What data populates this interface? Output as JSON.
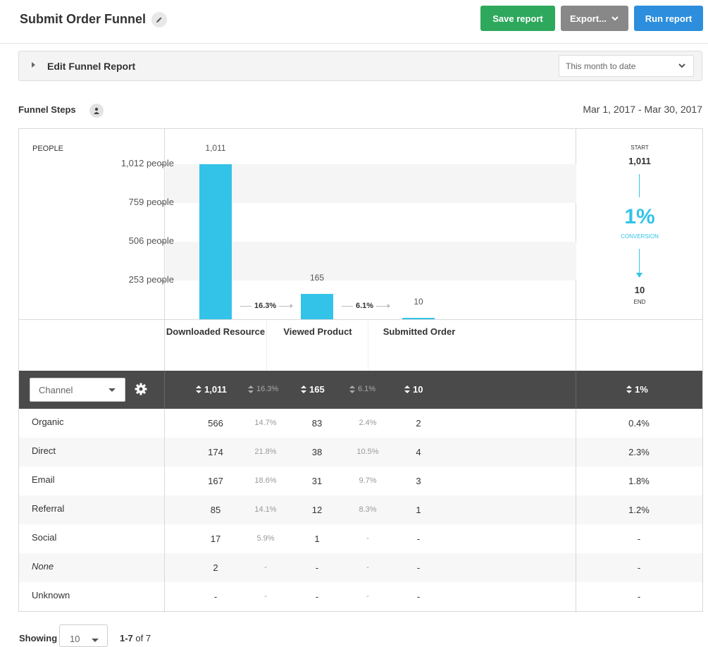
{
  "header": {
    "title": "Submit Order Funnel",
    "save_label": "Save report",
    "export_label": "Export...",
    "run_label": "Run report"
  },
  "edit_bar": {
    "label": "Edit Funnel Report",
    "range_value": "This month to date"
  },
  "funnel": {
    "section_label": "Funnel Steps",
    "date_range": "Mar 1, 2017 - Mar 30, 2017",
    "y_label": "PEOPLE",
    "y_ticks": [
      "1,012 people",
      "759 people",
      "506 people",
      "253 people"
    ],
    "summary": {
      "start_label": "START",
      "start_value": "1,011",
      "conversion_pct": "1%",
      "conversion_label": "CONVERSION",
      "end_value": "10",
      "end_label": "END"
    }
  },
  "chart_data": {
    "type": "bar",
    "categories": [
      "Downloaded Resource",
      "Viewed Product",
      "Submitted Order"
    ],
    "values": [
      1011,
      165,
      10
    ],
    "value_labels": [
      "1,011",
      "165",
      "10"
    ],
    "step_conversions": [
      "16.3%",
      "6.1%"
    ],
    "ylabel": "PEOPLE",
    "ylim": [
      0,
      1012
    ],
    "yticks": [
      253,
      506,
      759,
      1012
    ]
  },
  "table": {
    "group_by": "Channel",
    "totals": {
      "step1": "1,011",
      "conv1": "16.3%",
      "step2": "165",
      "conv2": "6.1%",
      "step3": "10",
      "overall": "1%"
    },
    "rows": [
      {
        "name": "Organic",
        "s1": "566",
        "c1": "14.7%",
        "s2": "83",
        "c2": "2.4%",
        "s3": "2",
        "overall": "0.4%"
      },
      {
        "name": "Direct",
        "s1": "174",
        "c1": "21.8%",
        "s2": "38",
        "c2": "10.5%",
        "s3": "4",
        "overall": "2.3%"
      },
      {
        "name": "Email",
        "s1": "167",
        "c1": "18.6%",
        "s2": "31",
        "c2": "9.7%",
        "s3": "3",
        "overall": "1.8%"
      },
      {
        "name": "Referral",
        "s1": "85",
        "c1": "14.1%",
        "s2": "12",
        "c2": "8.3%",
        "s3": "1",
        "overall": "1.2%"
      },
      {
        "name": "Social",
        "s1": "17",
        "c1": "5.9%",
        "s2": "1",
        "c2": "-",
        "s3": "-",
        "overall": "-"
      },
      {
        "name": "None",
        "s1": "2",
        "c1": "-",
        "s2": "-",
        "c2": "-",
        "s3": "-",
        "overall": "-"
      },
      {
        "name": "Unknown",
        "s1": "-",
        "c1": "-",
        "s2": "-",
        "c2": "-",
        "s3": "-",
        "overall": "-"
      }
    ]
  },
  "footer": {
    "showing_label": "Showing",
    "per_page": "10",
    "range": "1-7",
    "of_label": "of 7"
  },
  "colors": {
    "accent": "#33c3e8",
    "save": "#2ea85c",
    "run": "#2c8edc",
    "export": "#888888",
    "table_header": "#4a4a4a"
  }
}
